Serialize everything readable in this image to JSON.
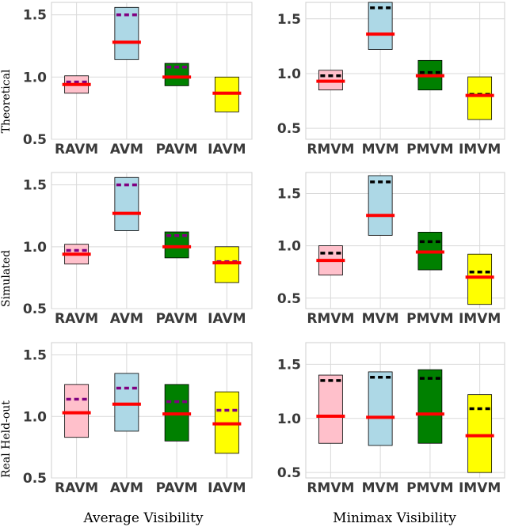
{
  "columns": [
    "Average Visibility",
    "Minimax Visibility"
  ],
  "rows": [
    "Theoretical",
    "Simulated",
    "Real Held-out"
  ],
  "colors": {
    "pink": "#ffc0cb",
    "lightblue": "#add8e6",
    "green": "#008000",
    "yellow": "#ffff00",
    "median": "#ff0000",
    "mean_purple": "#800080",
    "mean_black": "#000000",
    "grid": "#d9d9d9",
    "frame": "#cfcfcf"
  },
  "chart_data": [
    {
      "type": "box",
      "row": "Theoretical",
      "column": "Average Visibility",
      "ylim": [
        0.5,
        1.6
      ],
      "yticks": [
        0.5,
        1.0,
        1.5
      ],
      "ytick_labels": [
        "0.5",
        "1.0",
        "1.5"
      ],
      "categories": [
        "RAVM",
        "AVM",
        "PAVM",
        "IAVM"
      ],
      "boxes": [
        {
          "label": "RAVM",
          "color": "pink",
          "low": 0.87,
          "high": 1.01,
          "median": 0.94,
          "mean": 0.96
        },
        {
          "label": "AVM",
          "color": "lightblue",
          "low": 1.14,
          "high": 1.56,
          "median": 1.28,
          "mean": 1.5
        },
        {
          "label": "PAVM",
          "color": "green",
          "low": 0.93,
          "high": 1.11,
          "median": 1.0,
          "mean": 1.08
        },
        {
          "label": "IAVM",
          "color": "yellow",
          "low": 0.72,
          "high": 1.0,
          "median": 0.87,
          "mean": 0.87
        }
      ],
      "mean_color": "mean_purple"
    },
    {
      "type": "box",
      "row": "Theoretical",
      "column": "Minimax Visibility",
      "ylim": [
        0.4,
        1.65
      ],
      "yticks": [
        0.5,
        1.0,
        1.5
      ],
      "ytick_labels": [
        "0.5",
        "1.0",
        "1.5"
      ],
      "categories": [
        "RMVM",
        "MVM",
        "PMVM",
        "IMVM"
      ],
      "boxes": [
        {
          "label": "RMVM",
          "color": "pink",
          "low": 0.85,
          "high": 1.03,
          "median": 0.93,
          "mean": 0.98
        },
        {
          "label": "MVM",
          "color": "lightblue",
          "low": 1.22,
          "high": 1.65,
          "median": 1.36,
          "mean": 1.6
        },
        {
          "label": "PMVM",
          "color": "green",
          "low": 0.85,
          "high": 1.12,
          "median": 0.98,
          "mean": 1.01
        },
        {
          "label": "IMVM",
          "color": "yellow",
          "low": 0.58,
          "high": 0.97,
          "median": 0.8,
          "mean": 0.81
        }
      ],
      "mean_color": "mean_black"
    },
    {
      "type": "box",
      "row": "Simulated",
      "column": "Average Visibility",
      "ylim": [
        0.5,
        1.6
      ],
      "yticks": [
        0.5,
        1.0,
        1.5
      ],
      "ytick_labels": [
        "0.5",
        "1.0",
        "1.5"
      ],
      "categories": [
        "RAVM",
        "AVM",
        "PAVM",
        "IAVM"
      ],
      "boxes": [
        {
          "label": "RAVM",
          "color": "pink",
          "low": 0.86,
          "high": 1.02,
          "median": 0.94,
          "mean": 0.97
        },
        {
          "label": "AVM",
          "color": "lightblue",
          "low": 1.13,
          "high": 1.56,
          "median": 1.27,
          "mean": 1.5
        },
        {
          "label": "PAVM",
          "color": "green",
          "low": 0.91,
          "high": 1.12,
          "median": 1.0,
          "mean": 1.09
        },
        {
          "label": "IAVM",
          "color": "yellow",
          "low": 0.71,
          "high": 1.0,
          "median": 0.87,
          "mean": 0.88
        }
      ],
      "mean_color": "mean_purple"
    },
    {
      "type": "box",
      "row": "Simulated",
      "column": "Minimax Visibility",
      "ylim": [
        0.4,
        1.7
      ],
      "yticks": [
        0.5,
        1.0,
        1.5
      ],
      "ytick_labels": [
        "0.5",
        "1.0",
        "1.5"
      ],
      "categories": [
        "RMVM",
        "MVM",
        "PMVM",
        "IMVM"
      ],
      "boxes": [
        {
          "label": "RMVM",
          "color": "pink",
          "low": 0.72,
          "high": 1.0,
          "median": 0.86,
          "mean": 0.93
        },
        {
          "label": "MVM",
          "color": "lightblue",
          "low": 1.1,
          "high": 1.67,
          "median": 1.29,
          "mean": 1.61
        },
        {
          "label": "PMVM",
          "color": "green",
          "low": 0.77,
          "high": 1.13,
          "median": 0.94,
          "mean": 1.04
        },
        {
          "label": "IMVM",
          "color": "yellow",
          "low": 0.44,
          "high": 0.92,
          "median": 0.7,
          "mean": 0.75
        }
      ],
      "mean_color": "mean_black"
    },
    {
      "type": "box",
      "row": "Real Held-out",
      "column": "Average Visibility",
      "ylim": [
        0.5,
        1.6
      ],
      "yticks": [
        0.5,
        1.0,
        1.5
      ],
      "ytick_labels": [
        "0.5",
        "1.0",
        "1.5"
      ],
      "categories": [
        "RAVM",
        "AVM",
        "PAVM",
        "IAVM"
      ],
      "boxes": [
        {
          "label": "RAVM",
          "color": "pink",
          "low": 0.83,
          "high": 1.26,
          "median": 1.03,
          "mean": 1.14
        },
        {
          "label": "AVM",
          "color": "lightblue",
          "low": 0.88,
          "high": 1.35,
          "median": 1.1,
          "mean": 1.23
        },
        {
          "label": "PAVM",
          "color": "green",
          "low": 0.8,
          "high": 1.26,
          "median": 1.02,
          "mean": 1.12
        },
        {
          "label": "IAVM",
          "color": "yellow",
          "low": 0.7,
          "high": 1.2,
          "median": 0.94,
          "mean": 1.05
        }
      ],
      "mean_color": "mean_purple"
    },
    {
      "type": "box",
      "row": "Real Held-out",
      "column": "Minimax Visibility",
      "ylim": [
        0.45,
        1.7
      ],
      "yticks": [
        0.5,
        1.0,
        1.5
      ],
      "ytick_labels": [
        "0.5",
        "1.0",
        "1.5"
      ],
      "categories": [
        "RMVM",
        "MVM",
        "PMVM",
        "IMVM"
      ],
      "boxes": [
        {
          "label": "RMVM",
          "color": "pink",
          "low": 0.77,
          "high": 1.4,
          "median": 1.02,
          "mean": 1.35
        },
        {
          "label": "MVM",
          "color": "lightblue",
          "low": 0.75,
          "high": 1.43,
          "median": 1.01,
          "mean": 1.38
        },
        {
          "label": "PMVM",
          "color": "green",
          "low": 0.77,
          "high": 1.45,
          "median": 1.04,
          "mean": 1.37
        },
        {
          "label": "IMVM",
          "color": "yellow",
          "low": 0.5,
          "high": 1.22,
          "median": 0.84,
          "mean": 1.09
        }
      ],
      "mean_color": "mean_black"
    }
  ]
}
